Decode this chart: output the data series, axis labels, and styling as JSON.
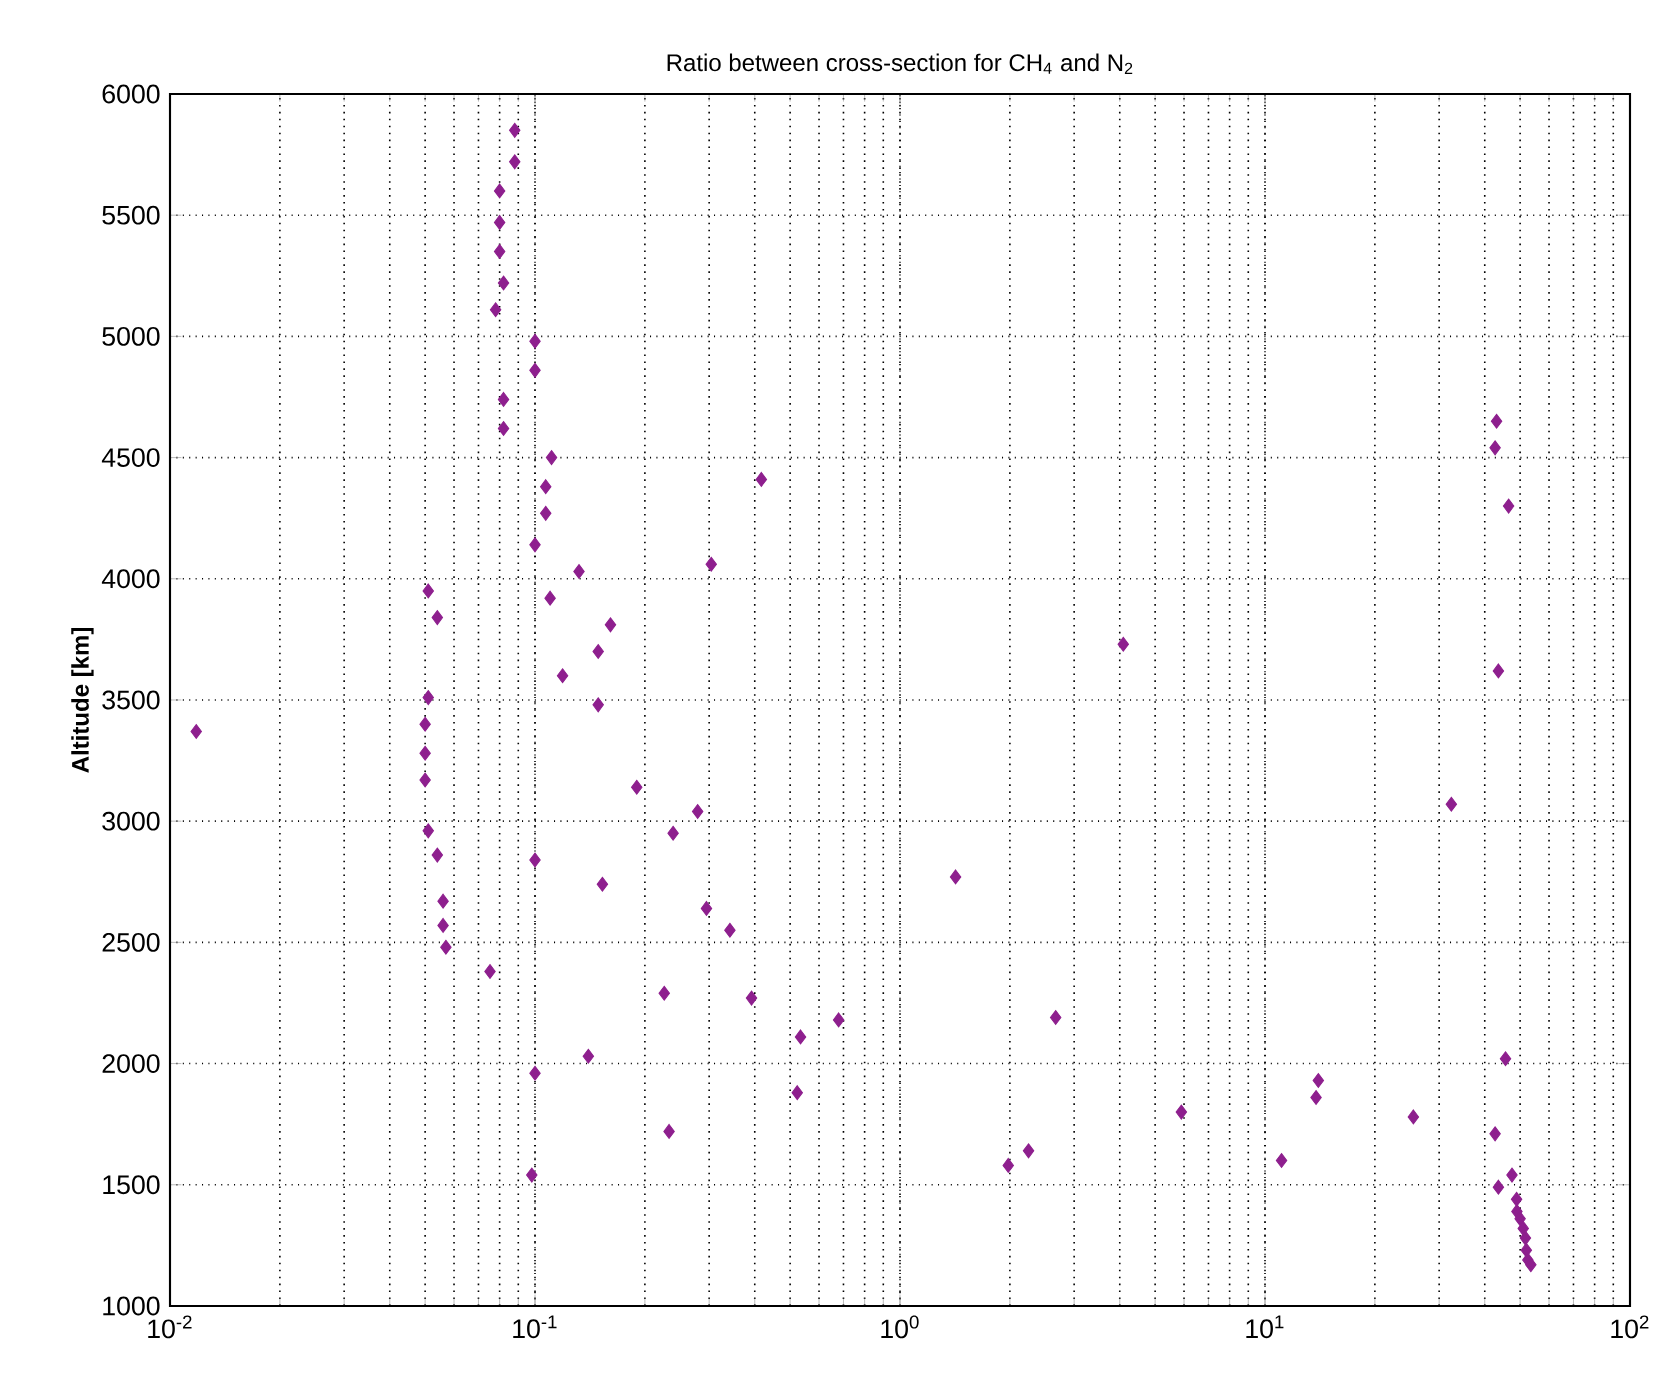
{
  "chart_data": {
    "type": "scatter",
    "title": "Ratio between cross-section for CH$_{4}$ and N$_{2}$",
    "ylabel": "Altitude [km]",
    "log": "x",
    "grid": true,
    "marker": "diamond",
    "xlim": [
      0.01,
      100
    ],
    "xticks": [
      {
        "value": 0.01,
        "label": "10$^{-2}$"
      },
      {
        "value": 0.1,
        "label": "10$^{-1}$"
      },
      {
        "value": 1,
        "label": "10$^{0}$"
      },
      {
        "value": 10,
        "label": "10$^{1}$"
      },
      {
        "value": 100,
        "label": "10$^{2}$"
      }
    ],
    "ylim": [
      1000,
      6000
    ],
    "yticks": [
      1000,
      1500,
      2000,
      2500,
      3000,
      3500,
      4000,
      4500,
      5000,
      5500,
      6000
    ],
    "series": [
      {
        "color": "#8e1f8e",
        "x": [
          0.088,
          0.088,
          0.08,
          0.08,
          0.08,
          0.082,
          0.078,
          0.1,
          0.1,
          0.082,
          0.082,
          0.111,
          0.107,
          0.107,
          0.1,
          0.132,
          0.051,
          0.11,
          0.054,
          0.161,
          0.149,
          0.119,
          0.051,
          0.149,
          0.0118,
          0.05,
          0.05,
          0.05,
          0.19,
          0.239,
          0.051,
          0.054,
          0.1,
          0.153,
          0.056,
          0.056,
          0.057,
          0.0753,
          0.226,
          0.14,
          0.1,
          0.233,
          0.098,
          0.304,
          0.417,
          4.09,
          43.1,
          42.7,
          46.5,
          43.6,
          0.279,
          32.4,
          1.42,
          0.295,
          0.342,
          0.392,
          2.67,
          0.679,
          0.534,
          45.6,
          14.0,
          13.8,
          0.523,
          5.9,
          25.5,
          42.7,
          2.25,
          1.98,
          11.1,
          43.6,
          47.5,
          48.9,
          49,
          50,
          51,
          51.7,
          52,
          52.5,
          53.5
        ],
        "values": [
          5850,
          5720,
          5600,
          5470,
          5350,
          5220,
          5110,
          4980,
          4860,
          4740,
          4620,
          4500,
          4380,
          4270,
          4140,
          4030,
          3950,
          3920,
          3840,
          3810,
          3700,
          3600,
          3510,
          3480,
          3370,
          3400,
          3280,
          3170,
          3140,
          2950,
          2960,
          2860,
          2840,
          2740,
          2670,
          2570,
          2480,
          2380,
          2290,
          2030,
          1960,
          1720,
          1540,
          4060,
          4410,
          3730,
          4650,
          4540,
          4300,
          3620,
          3040,
          3070,
          2770,
          2640,
          2550,
          2270,
          2190,
          2180,
          2110,
          2020,
          1930,
          1860,
          1880,
          1800,
          1780,
          1710,
          1640,
          1580,
          1600,
          1490,
          1540,
          1440,
          1390,
          1360,
          1320,
          1280,
          1230,
          1190,
          1170
        ]
      }
    ]
  }
}
